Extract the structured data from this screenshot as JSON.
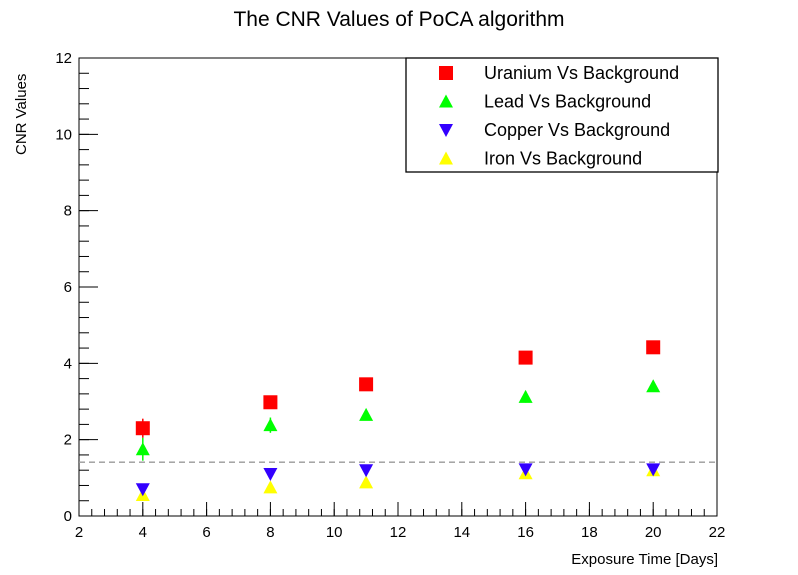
{
  "chart_data": {
    "type": "scatter",
    "title": "The CNR Values of PoCA algorithm",
    "xlabel": "Exposure Time [Days]",
    "ylabel": "CNR Values",
    "xlim": [
      2,
      22
    ],
    "ylim": [
      0,
      12
    ],
    "x_ticks": [
      2,
      4,
      6,
      8,
      10,
      12,
      14,
      16,
      18,
      20,
      22
    ],
    "y_ticks": [
      0,
      2,
      4,
      6,
      8,
      10,
      12
    ],
    "x_tick_labels": [
      "2",
      "4",
      "6",
      "8",
      "10",
      "12",
      "14",
      "16",
      "18",
      "20",
      "22"
    ],
    "y_tick_labels": [
      "0",
      "2",
      "4",
      "6",
      "8",
      "10",
      "12"
    ],
    "threshold_line": 1.41,
    "legend_position": "top-right",
    "x": [
      4,
      8,
      11,
      16,
      20
    ],
    "series": [
      {
        "name": "Uranium Vs Background",
        "marker": "square",
        "color": "#ff0000",
        "values": [
          2.3,
          2.98,
          3.45,
          4.15,
          4.42
        ],
        "errors": [
          0.25,
          0.12,
          0.08,
          0.08,
          0.08
        ]
      },
      {
        "name": "Lead Vs Background",
        "marker": "triangle-up",
        "color": "#00ff00",
        "values": [
          1.75,
          2.38,
          2.65,
          3.12,
          3.4
        ],
        "errors": [
          0.3,
          0.2,
          0.1,
          0.15,
          0.15
        ]
      },
      {
        "name": "Copper Vs Background",
        "marker": "triangle-down",
        "color": "#3300ff",
        "values": [
          0.7,
          1.1,
          1.2,
          1.22,
          1.22
        ],
        "errors": [
          0.05,
          0.05,
          0.05,
          0.05,
          0.1
        ]
      },
      {
        "name": "Iron Vs Background",
        "marker": "triangle-up",
        "color": "#ffff00",
        "values": [
          0.55,
          0.75,
          0.88,
          1.12,
          1.2
        ],
        "errors": [
          0.05,
          0.05,
          0.05,
          0.05,
          0.05
        ]
      }
    ]
  }
}
